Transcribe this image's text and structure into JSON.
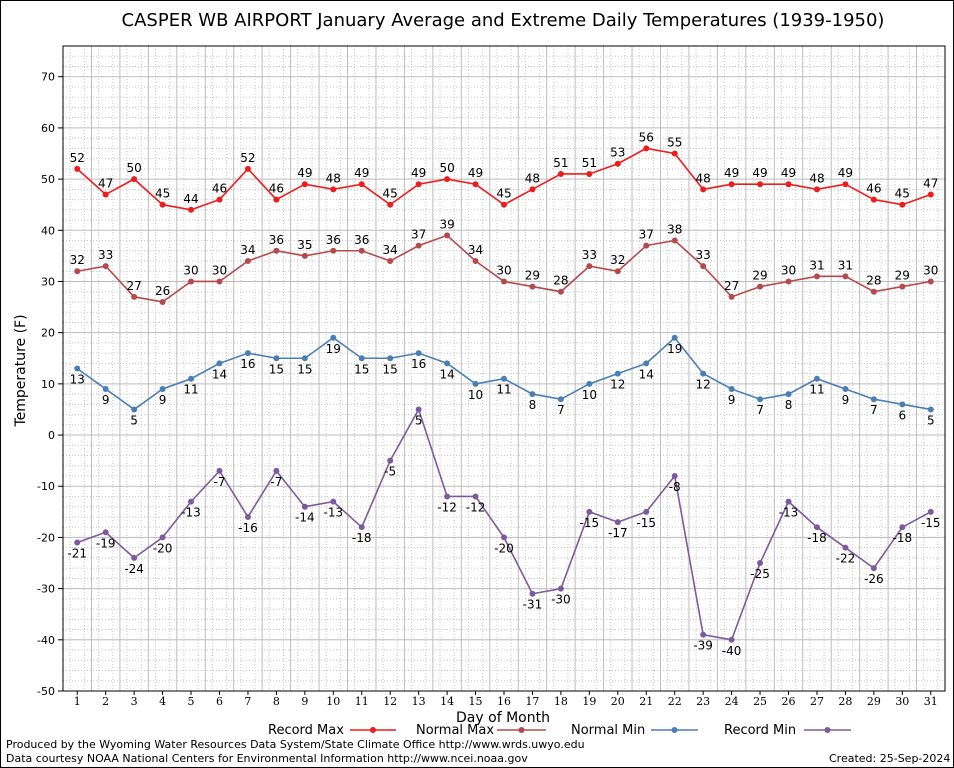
{
  "chart_data": {
    "type": "line",
    "title": "CASPER WB AIRPORT January Average and Extreme Daily Temperatures (1939-1950)",
    "xlabel": "Day of Month",
    "ylabel": "Temperature (F)",
    "ylim": [
      -50,
      76
    ],
    "yticks": [
      -50,
      -40,
      -30,
      -20,
      -10,
      0,
      10,
      20,
      30,
      40,
      50,
      60,
      70
    ],
    "x": [
      1,
      2,
      3,
      4,
      5,
      6,
      7,
      8,
      9,
      10,
      11,
      12,
      13,
      14,
      15,
      16,
      17,
      18,
      19,
      20,
      21,
      22,
      23,
      24,
      25,
      26,
      27,
      28,
      29,
      30,
      31
    ],
    "grid": true,
    "legend_position": "bottom",
    "series": [
      {
        "name": "Record Max",
        "color": "#ee1c1c",
        "label_position": "above",
        "values": [
          52,
          47,
          50,
          45,
          44,
          46,
          52,
          46,
          49,
          48,
          49,
          45,
          49,
          50,
          49,
          45,
          48,
          51,
          51,
          53,
          56,
          55,
          48,
          49,
          49,
          49,
          48,
          49,
          46,
          45,
          47
        ]
      },
      {
        "name": "Normal Max",
        "color": "#b64a4a",
        "label_position": "above",
        "values": [
          32,
          33,
          27,
          26,
          30,
          30,
          34,
          36,
          35,
          36,
          36,
          34,
          37,
          39,
          34,
          30,
          29,
          28,
          33,
          32,
          37,
          38,
          33,
          27,
          29,
          30,
          31,
          31,
          28,
          29,
          30
        ]
      },
      {
        "name": "Normal Min",
        "color": "#4a7fb5",
        "label_position": "below",
        "values": [
          13,
          9,
          5,
          9,
          11,
          14,
          16,
          15,
          15,
          19,
          15,
          15,
          16,
          14,
          10,
          11,
          8,
          7,
          10,
          12,
          14,
          19,
          12,
          9,
          7,
          8,
          11,
          9,
          7,
          6,
          5
        ]
      },
      {
        "name": "Record Min",
        "color": "#7d5a9e",
        "label_position": "below",
        "values": [
          -21,
          -19,
          -24,
          -20,
          -13,
          -7,
          -16,
          -7,
          -14,
          -13,
          -18,
          -5,
          5,
          -12,
          -12,
          -20,
          -31,
          -30,
          -15,
          -17,
          -15,
          -8,
          -39,
          -40,
          -25,
          -13,
          -18,
          -22,
          -26,
          -18,
          -15
        ]
      }
    ]
  },
  "footer": {
    "produced_by": "Produced by the Wyoming Water Resources Data System/State Climate Office http://www.wrds.uwyo.edu",
    "courtesy": "Data courtesy NOAA National Centers for Environmental Information http://www.ncei.noaa.gov",
    "created": "Created:  25-Sep-2024"
  }
}
